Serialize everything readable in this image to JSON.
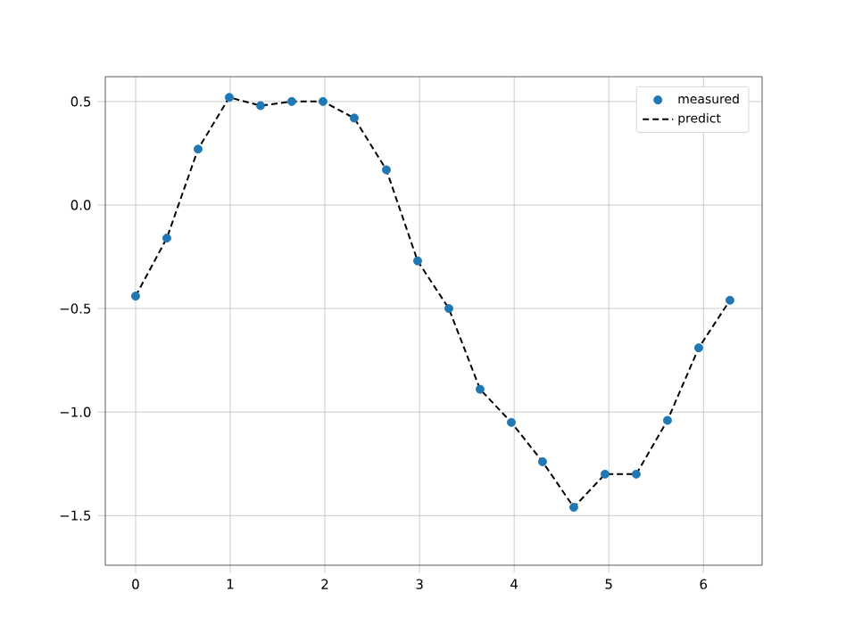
{
  "chart_data": {
    "type": "scatter",
    "series": [
      {
        "name": "measured",
        "color": "#1f77b4",
        "marker": "circle",
        "x": [
          0,
          0.33,
          0.66,
          0.99,
          1.32,
          1.65,
          1.98,
          2.31,
          2.65,
          2.98,
          3.31,
          3.64,
          3.97,
          4.3,
          4.63,
          4.96,
          5.29,
          5.62,
          5.95,
          6.28
        ],
        "values": [
          -0.44,
          -0.16,
          0.27,
          0.52,
          0.48,
          0.5,
          0.5,
          0.42,
          0.17,
          -0.27,
          -0.5,
          -0.89,
          -1.05,
          -1.24,
          -1.46,
          -1.3,
          -1.3,
          -1.04,
          -0.69,
          -0.46
        ]
      },
      {
        "name": "predict",
        "type": "line",
        "color": "#000000",
        "line_style": "dashed",
        "marker": "none",
        "x": [
          0,
          0.33,
          0.66,
          0.99,
          1.32,
          1.65,
          1.98,
          2.31,
          2.65,
          2.98,
          3.31,
          3.64,
          3.97,
          4.3,
          4.63,
          4.96,
          5.29,
          5.62,
          5.95,
          6.28
        ],
        "values": [
          -0.44,
          -0.16,
          0.27,
          0.52,
          0.48,
          0.5,
          0.5,
          0.42,
          0.17,
          -0.27,
          -0.5,
          -0.89,
          -1.05,
          -1.24,
          -1.46,
          -1.3,
          -1.3,
          -1.04,
          -0.69,
          -0.46
        ]
      }
    ],
    "xlim": [
      -0.32,
      6.62
    ],
    "ylim": [
      -1.74,
      0.62
    ],
    "xticks": [
      0,
      1,
      2,
      3,
      4,
      5,
      6
    ],
    "yticks": [
      {
        "value": 0.5,
        "label": "0.5"
      },
      {
        "value": 0,
        "label": "0.0"
      },
      {
        "value": -0.5,
        "label": "−0.5"
      },
      {
        "value": -1.0,
        "label": "−1.0"
      },
      {
        "value": -1.5,
        "label": "−1.5"
      }
    ],
    "grid": true,
    "legend": "top right"
  }
}
